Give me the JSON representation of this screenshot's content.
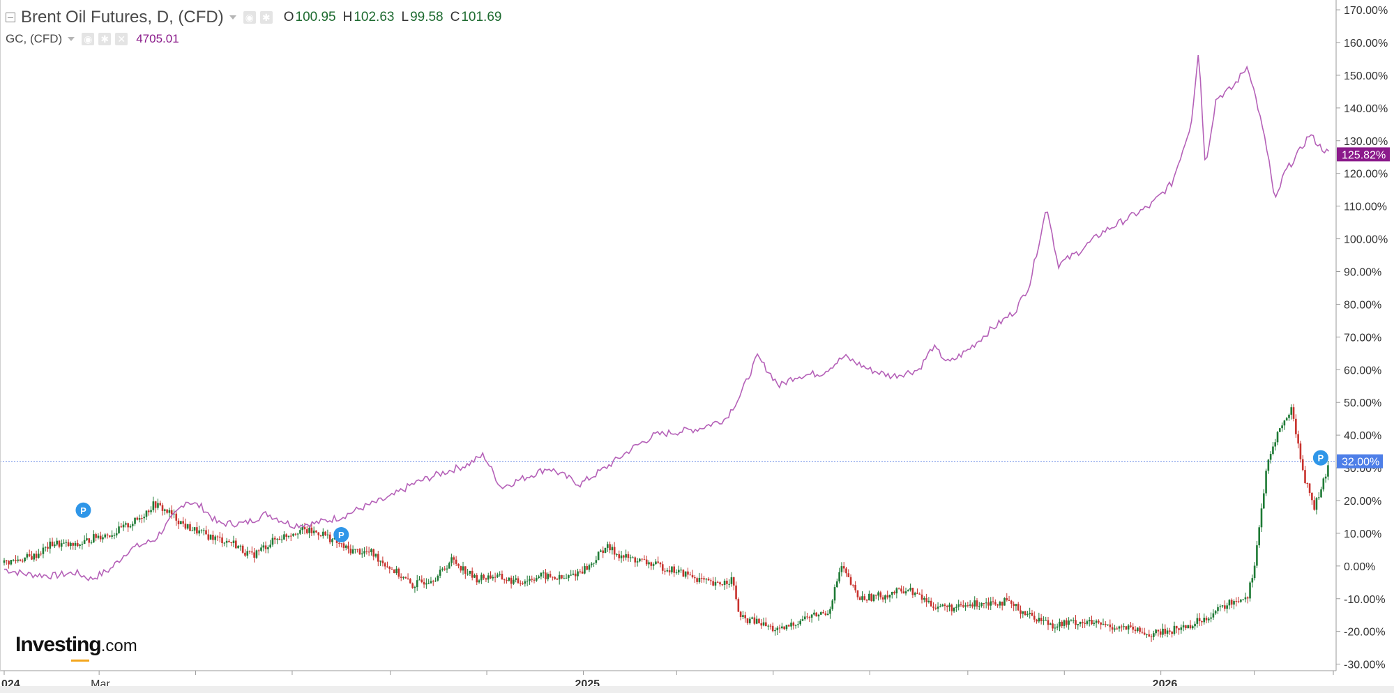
{
  "header": {
    "title": "Brent Oil Futures, D, (CFD)",
    "ohlc": [
      {
        "label": "O",
        "value": "100.95"
      },
      {
        "label": "H",
        "value": "102.63"
      },
      {
        "label": "L",
        "value": "99.58"
      },
      {
        "label": "C",
        "value": "101.69"
      }
    ],
    "secondary_symbol": "GC, (CFD)",
    "secondary_value": "4705.01"
  },
  "logo": {
    "main": "Investing",
    "suffix": ".com"
  },
  "colors": {
    "gold_line": "#b561b8",
    "up_candle": "#1e7a35",
    "down_candle": "#c8322d",
    "gold_tag": "#8b1a8b",
    "level_tag": "#4e7fe8",
    "marker": "#2f96e8"
  },
  "icons": [
    "collapse-icon",
    "eye-icon",
    "gear-icon",
    "close-icon",
    "chevron-down-icon"
  ],
  "chart_data": {
    "type": "line",
    "title": "Brent Oil Futures, D, (CFD)",
    "y_unit": "% change",
    "ylim": [
      -32,
      173
    ],
    "y_ticks": [
      -30,
      -20,
      -10,
      0,
      10,
      20,
      30,
      40,
      50,
      60,
      70,
      80,
      90,
      100,
      110,
      120,
      130,
      140,
      150,
      160,
      170
    ],
    "y_tick_labels": [
      "-30.00%",
      "-20.00%",
      "-10.00%",
      "0.00%",
      "10.00%",
      "20.00%",
      "30.00%",
      "40.00%",
      "50.00%",
      "60.00%",
      "70.00%",
      "80.00%",
      "90.00%",
      "100.00%",
      "110.00%",
      "120.00%",
      "130.00%",
      "140.00%",
      "150.00%",
      "160.00%",
      "170.00%"
    ],
    "xlim": [
      "2024-01-01",
      "2026-04-20"
    ],
    "x_labels": [
      {
        "text": "024",
        "date": "2024-01-01"
      },
      {
        "text": "Mar",
        "date": "2024-03-01"
      },
      {
        "text": "2025",
        "date": "2025-01-01"
      },
      {
        "text": "2026",
        "date": "2026-01-01"
      }
    ],
    "x_minor_ticks": [
      "2024-05-01",
      "2024-07-01",
      "2024-09-01",
      "2024-11-01",
      "2025-03-01",
      "2025-05-01",
      "2025-07-01",
      "2025-09-01",
      "2025-11-01",
      "2026-03-01",
      "2026-04-20"
    ],
    "grid": false,
    "legend": "none",
    "reference_line": {
      "value": 32.0,
      "label": "32.00%"
    },
    "last_value_tags": [
      {
        "series": "GC, (CFD)",
        "value": 125.82,
        "label": "125.82%"
      }
    ],
    "markers": [
      {
        "date": "2024-02-20",
        "value": 14.5,
        "label": "P"
      },
      {
        "date": "2024-08-01",
        "value": 7.0,
        "label": "P"
      },
      {
        "date": "2026-04-12",
        "value": 30.5,
        "label": "P"
      }
    ],
    "series": [
      {
        "name": "GC, (CFD)",
        "kind": "line",
        "points": [
          [
            "2024-01-01",
            -1
          ],
          [
            "2024-01-15",
            -2.5
          ],
          [
            "2024-02-01",
            -3
          ],
          [
            "2024-02-15",
            -2
          ],
          [
            "2024-02-25",
            -4
          ],
          [
            "2024-03-08",
            -1
          ],
          [
            "2024-03-20",
            5
          ],
          [
            "2024-04-05",
            8
          ],
          [
            "2024-04-15",
            14
          ],
          [
            "2024-04-25",
            20
          ],
          [
            "2024-05-05",
            18
          ],
          [
            "2024-05-15",
            13
          ],
          [
            "2024-06-01",
            13
          ],
          [
            "2024-06-15",
            16
          ],
          [
            "2024-07-01",
            12.5
          ],
          [
            "2024-07-15",
            13
          ],
          [
            "2024-08-01",
            15
          ],
          [
            "2024-08-15",
            18
          ],
          [
            "2024-09-01",
            21
          ],
          [
            "2024-09-15",
            25
          ],
          [
            "2024-10-01",
            28
          ],
          [
            "2024-10-20",
            31
          ],
          [
            "2024-10-30",
            34
          ],
          [
            "2024-11-10",
            24
          ],
          [
            "2024-11-25",
            27
          ],
          [
            "2024-12-10",
            30
          ],
          [
            "2024-12-30",
            25
          ],
          [
            "2025-01-15",
            30
          ],
          [
            "2025-02-01",
            36
          ],
          [
            "2025-02-15",
            40
          ],
          [
            "2025-03-01",
            41
          ],
          [
            "2025-03-15",
            42
          ],
          [
            "2025-04-01",
            45
          ],
          [
            "2025-04-10",
            52
          ],
          [
            "2025-04-21",
            64
          ],
          [
            "2025-05-05",
            55
          ],
          [
            "2025-05-15",
            58
          ],
          [
            "2025-06-01",
            59
          ],
          [
            "2025-06-15",
            64
          ],
          [
            "2025-07-01",
            60
          ],
          [
            "2025-07-15",
            58
          ],
          [
            "2025-08-01",
            60
          ],
          [
            "2025-08-10",
            67
          ],
          [
            "2025-08-20",
            62
          ],
          [
            "2025-09-01",
            66
          ],
          [
            "2025-09-15",
            72
          ],
          [
            "2025-10-01",
            78
          ],
          [
            "2025-10-10",
            86
          ],
          [
            "2025-10-21",
            110
          ],
          [
            "2025-10-28",
            92
          ],
          [
            "2025-11-10",
            96
          ],
          [
            "2025-11-25",
            102
          ],
          [
            "2025-12-10",
            106
          ],
          [
            "2025-12-25",
            110
          ],
          [
            "2026-01-08",
            117
          ],
          [
            "2026-01-20",
            135
          ],
          [
            "2026-01-25",
            158
          ],
          [
            "2026-01-29",
            122
          ],
          [
            "2026-02-05",
            143
          ],
          [
            "2026-02-15",
            146
          ],
          [
            "2026-02-25",
            153
          ],
          [
            "2026-03-03",
            141
          ],
          [
            "2026-03-10",
            125
          ],
          [
            "2026-03-14",
            111
          ],
          [
            "2026-03-20",
            120
          ],
          [
            "2026-03-30",
            127
          ],
          [
            "2026-04-05",
            132
          ],
          [
            "2026-04-12",
            128
          ],
          [
            "2026-04-18",
            125.8
          ]
        ]
      },
      {
        "name": "Brent Oil Futures, D, (CFD)",
        "kind": "candles",
        "points": [
          [
            "2024-01-01",
            1
          ],
          [
            "2024-01-20",
            3
          ],
          [
            "2024-02-01",
            7
          ],
          [
            "2024-02-15",
            6
          ],
          [
            "2024-02-28",
            9
          ],
          [
            "2024-03-10",
            10
          ],
          [
            "2024-03-25",
            14
          ],
          [
            "2024-04-05",
            19
          ],
          [
            "2024-04-15",
            16
          ],
          [
            "2024-04-25",
            12
          ],
          [
            "2024-05-10",
            9
          ],
          [
            "2024-05-25",
            7
          ],
          [
            "2024-06-05",
            3
          ],
          [
            "2024-06-20",
            8
          ],
          [
            "2024-07-05",
            11
          ],
          [
            "2024-07-20",
            10
          ],
          [
            "2024-08-05",
            5
          ],
          [
            "2024-08-20",
            4
          ],
          [
            "2024-09-05",
            -2
          ],
          [
            "2024-09-15",
            -6
          ],
          [
            "2024-10-01",
            -3
          ],
          [
            "2024-10-10",
            2
          ],
          [
            "2024-10-25",
            -4
          ],
          [
            "2024-11-05",
            -3
          ],
          [
            "2024-11-20",
            -5
          ],
          [
            "2024-12-05",
            -3
          ],
          [
            "2024-12-20",
            -4
          ],
          [
            "2025-01-05",
            0
          ],
          [
            "2025-01-15",
            6
          ],
          [
            "2025-01-25",
            3
          ],
          [
            "2025-02-10",
            1
          ],
          [
            "2025-02-25",
            -1
          ],
          [
            "2025-03-10",
            -3
          ],
          [
            "2025-03-25",
            -6
          ],
          [
            "2025-04-05",
            -4
          ],
          [
            "2025-04-10",
            -16
          ],
          [
            "2025-04-20",
            -17
          ],
          [
            "2025-05-05",
            -20
          ],
          [
            "2025-05-20",
            -16
          ],
          [
            "2025-06-05",
            -14
          ],
          [
            "2025-06-13",
            0
          ],
          [
            "2025-06-24",
            -10
          ],
          [
            "2025-07-10",
            -9
          ],
          [
            "2025-07-25",
            -7
          ],
          [
            "2025-08-10",
            -12
          ],
          [
            "2025-08-25",
            -13
          ],
          [
            "2025-09-10",
            -11
          ],
          [
            "2025-09-25",
            -11
          ],
          [
            "2025-10-10",
            -15
          ],
          [
            "2025-10-25",
            -18
          ],
          [
            "2025-11-10",
            -17
          ],
          [
            "2025-11-25",
            -18
          ],
          [
            "2025-12-10",
            -19
          ],
          [
            "2025-12-25",
            -21
          ],
          [
            "2026-01-05",
            -20
          ],
          [
            "2026-01-20",
            -18
          ],
          [
            "2026-02-01",
            -15
          ],
          [
            "2026-02-15",
            -11
          ],
          [
            "2026-02-25",
            -9
          ],
          [
            "2026-03-01",
            0
          ],
          [
            "2026-03-05",
            15
          ],
          [
            "2026-03-09",
            30
          ],
          [
            "2026-03-15",
            40
          ],
          [
            "2026-03-25",
            48
          ],
          [
            "2026-04-01",
            28
          ],
          [
            "2026-04-08",
            18
          ],
          [
            "2026-04-14",
            26
          ],
          [
            "2026-04-18",
            32
          ]
        ]
      }
    ]
  }
}
